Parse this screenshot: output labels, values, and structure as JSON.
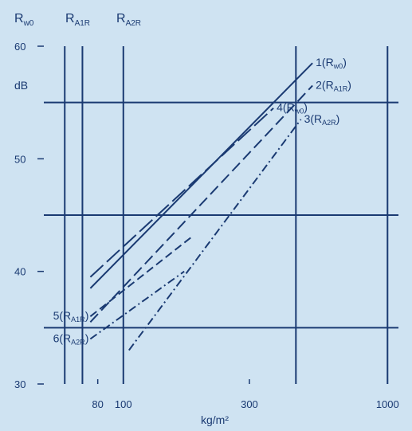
{
  "chart_data": {
    "type": "line",
    "title": "",
    "header_labels": [
      "R_w0",
      "R_A1R",
      "R_A2R"
    ],
    "xlabel": "kg/m²",
    "ylabel": "dB",
    "x_scale": "log",
    "xlim": [
      50,
      1100
    ],
    "ylim": [
      30,
      60
    ],
    "x_ticks": [
      "80",
      "100",
      "300",
      "1000"
    ],
    "y_ticks": [
      "30",
      "40",
      "50",
      "60"
    ],
    "x_gridlines": [
      60,
      70,
      100,
      450,
      1000
    ],
    "y_gridlines": [
      35,
      45,
      55
    ],
    "grid": true,
    "legend": "none",
    "series": [
      {
        "label_num": "1",
        "label_sub": "w0",
        "style": "solid",
        "x": [
          75,
          520
        ],
        "y": [
          38.5,
          58.5
        ],
        "label_at": "end"
      },
      {
        "label_num": "2",
        "label_sub": "A1R",
        "style": "dashed",
        "x": [
          75,
          520
        ],
        "y": [
          35.5,
          56.5
        ],
        "label_at": "end"
      },
      {
        "label_num": "3",
        "label_sub": "A2R",
        "style": "dashdot",
        "x": [
          105,
          470
        ],
        "y": [
          33.0,
          53.5
        ],
        "label_at": "end"
      },
      {
        "label_num": "4",
        "label_sub": "w0",
        "style": "longdash",
        "x": [
          75,
          370
        ],
        "y": [
          39.5,
          54.5
        ],
        "label_at": "end"
      },
      {
        "label_num": "5",
        "label_sub": "A1R",
        "style": "dash",
        "x": [
          75,
          180
        ],
        "y": [
          36.0,
          43.0
        ],
        "label_at": "start"
      },
      {
        "label_num": "6",
        "label_sub": "A2R",
        "style": "dashdot",
        "x": [
          75,
          170
        ],
        "y": [
          34.0,
          40.0
        ],
        "label_at": "start"
      }
    ],
    "colors": {
      "background": "#cfe3f2",
      "ink": "#1a3a72"
    }
  }
}
